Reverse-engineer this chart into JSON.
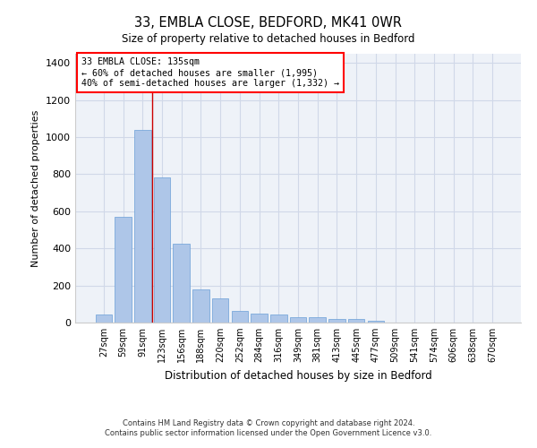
{
  "title": "33, EMBLA CLOSE, BEDFORD, MK41 0WR",
  "subtitle": "Size of property relative to detached houses in Bedford",
  "xlabel": "Distribution of detached houses by size in Bedford",
  "ylabel": "Number of detached properties",
  "categories": [
    "27sqm",
    "59sqm",
    "91sqm",
    "123sqm",
    "156sqm",
    "188sqm",
    "220sqm",
    "252sqm",
    "284sqm",
    "316sqm",
    "349sqm",
    "381sqm",
    "413sqm",
    "445sqm",
    "477sqm",
    "509sqm",
    "541sqm",
    "574sqm",
    "606sqm",
    "638sqm",
    "670sqm"
  ],
  "values": [
    45,
    570,
    1040,
    785,
    425,
    180,
    130,
    65,
    50,
    45,
    30,
    28,
    20,
    17,
    10,
    0,
    0,
    0,
    0,
    0,
    0
  ],
  "bar_color": "#aec6e8",
  "bar_edge_color": "#6a9fd8",
  "grid_color": "#d0d8e8",
  "background_color": "#eef2f8",
  "annotation_box_text": "33 EMBLA CLOSE: 135sqm\n← 60% of detached houses are smaller (1,995)\n40% of semi-detached houses are larger (1,332) →",
  "red_line_color": "#cc0000",
  "red_line_x": 2.5,
  "ylim": [
    0,
    1450
  ],
  "yticks": [
    0,
    200,
    400,
    600,
    800,
    1000,
    1200,
    1400
  ],
  "footer_line1": "Contains HM Land Registry data © Crown copyright and database right 2024.",
  "footer_line2": "Contains public sector information licensed under the Open Government Licence v3.0."
}
